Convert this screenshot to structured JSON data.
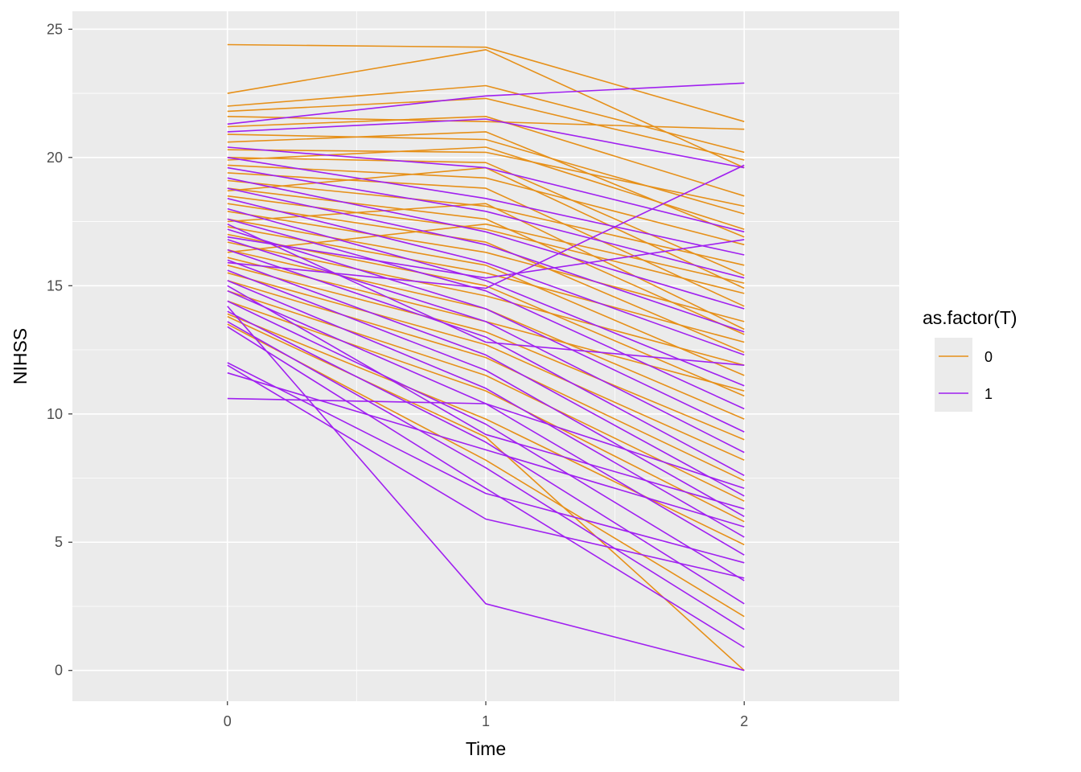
{
  "chart_data": {
    "type": "line",
    "x": [
      0,
      1,
      2
    ],
    "xticks": [
      "0",
      "1",
      "2"
    ],
    "yticks": [
      "0",
      "5",
      "10",
      "15",
      "20",
      "25"
    ],
    "xlim": [
      -0.6,
      2.6
    ],
    "ylim": [
      -1.2,
      25.7
    ],
    "xlabel": "Time",
    "ylabel": "NIHSS",
    "legend": {
      "title": "as.factor(T)",
      "placement": "right",
      "entries": [
        {
          "label": "0",
          "color": "#E69019"
        },
        {
          "label": "1",
          "color": "#A020F0"
        }
      ]
    },
    "series": [
      {
        "group": "0",
        "color": "#E69019",
        "values": [
          24.4,
          24.3,
          21.4
        ]
      },
      {
        "group": "0",
        "color": "#E69019",
        "values": [
          22.5,
          24.2,
          19.6
        ]
      },
      {
        "group": "0",
        "color": "#E69019",
        "values": [
          22.0,
          22.8,
          20.2
        ]
      },
      {
        "group": "0",
        "color": "#E69019",
        "values": [
          21.8,
          22.3,
          19.9
        ]
      },
      {
        "group": "0",
        "color": "#E69019",
        "values": [
          21.6,
          21.4,
          21.1
        ]
      },
      {
        "group": "0",
        "color": "#E69019",
        "values": [
          21.2,
          21.6,
          18.5
        ]
      },
      {
        "group": "0",
        "color": "#E69019",
        "values": [
          20.9,
          20.7,
          17.8
        ]
      },
      {
        "group": "0",
        "color": "#E69019",
        "values": [
          20.6,
          21.0,
          16.9
        ]
      },
      {
        "group": "0",
        "color": "#E69019",
        "values": [
          20.3,
          20.2,
          18.1
        ]
      },
      {
        "group": "0",
        "color": "#E69019",
        "values": [
          20.0,
          19.8,
          15.4
        ]
      },
      {
        "group": "0",
        "color": "#E69019",
        "values": [
          19.7,
          19.2,
          16.6
        ]
      },
      {
        "group": "0",
        "color": "#E69019",
        "values": [
          19.4,
          18.8,
          14.2
        ]
      },
      {
        "group": "0",
        "color": "#E69019",
        "values": [
          19.1,
          18.1,
          15.8
        ]
      },
      {
        "group": "0",
        "color": "#E69019",
        "values": [
          18.8,
          17.6,
          13.1
        ]
      },
      {
        "group": "0",
        "color": "#E69019",
        "values": [
          18.5,
          17.2,
          14.7
        ]
      },
      {
        "group": "0",
        "color": "#E69019",
        "values": [
          18.2,
          16.7,
          12.4
        ]
      },
      {
        "group": "0",
        "color": "#E69019",
        "values": [
          17.9,
          16.3,
          13.6
        ]
      },
      {
        "group": "0",
        "color": "#E69019",
        "values": [
          17.6,
          15.8,
          11.5
        ]
      },
      {
        "group": "0",
        "color": "#E69019",
        "values": [
          17.3,
          15.5,
          12.8
        ]
      },
      {
        "group": "0",
        "color": "#E69019",
        "values": [
          17.0,
          15.0,
          10.7
        ]
      },
      {
        "group": "0",
        "color": "#E69019",
        "values": [
          16.7,
          14.6,
          11.9
        ]
      },
      {
        "group": "0",
        "color": "#E69019",
        "values": [
          16.4,
          14.1,
          9.8
        ]
      },
      {
        "group": "0",
        "color": "#E69019",
        "values": [
          16.1,
          13.6,
          10.9
        ]
      },
      {
        "group": "0",
        "color": "#E69019",
        "values": [
          15.8,
          13.2,
          9.0
        ]
      },
      {
        "group": "0",
        "color": "#E69019",
        "values": [
          15.5,
          12.7,
          8.2
        ]
      },
      {
        "group": "0",
        "color": "#E69019",
        "values": [
          15.2,
          12.2,
          7.4
        ]
      },
      {
        "group": "0",
        "color": "#E69019",
        "values": [
          14.8,
          11.5,
          6.6
        ]
      },
      {
        "group": "0",
        "color": "#E69019",
        "values": [
          14.4,
          10.9,
          5.8
        ]
      },
      {
        "group": "0",
        "color": "#E69019",
        "values": [
          13.9,
          9.8,
          4.9
        ]
      },
      {
        "group": "0",
        "color": "#E69019",
        "values": [
          13.5,
          8.2,
          2.1
        ]
      },
      {
        "group": "0",
        "color": "#E69019",
        "values": [
          13.8,
          9.1,
          0.0
        ]
      },
      {
        "group": "0",
        "color": "#E69019",
        "values": [
          19.9,
          20.4,
          17.2
        ]
      },
      {
        "group": "0",
        "color": "#E69019",
        "values": [
          18.7,
          19.6,
          14.9
        ]
      },
      {
        "group": "0",
        "color": "#E69019",
        "values": [
          17.5,
          18.2,
          13.3
        ]
      },
      {
        "group": "0",
        "color": "#E69019",
        "values": [
          16.3,
          17.4,
          15.1
        ]
      },
      {
        "group": "1",
        "color": "#A020F0",
        "values": [
          21.3,
          22.4,
          22.9
        ]
      },
      {
        "group": "1",
        "color": "#A020F0",
        "values": [
          21.0,
          21.5,
          19.6
        ]
      },
      {
        "group": "1",
        "color": "#A020F0",
        "values": [
          20.4,
          19.6,
          17.1
        ]
      },
      {
        "group": "1",
        "color": "#A020F0",
        "values": [
          20.0,
          18.4,
          16.2
        ]
      },
      {
        "group": "1",
        "color": "#A020F0",
        "values": [
          19.6,
          17.9,
          15.3
        ]
      },
      {
        "group": "1",
        "color": "#A020F0",
        "values": [
          19.2,
          17.1,
          14.1
        ]
      },
      {
        "group": "1",
        "color": "#A020F0",
        "values": [
          18.8,
          16.6,
          13.2
        ]
      },
      {
        "group": "1",
        "color": "#A020F0",
        "values": [
          18.4,
          15.9,
          12.3
        ]
      },
      {
        "group": "1",
        "color": "#A020F0",
        "values": [
          18.0,
          15.2,
          11.1
        ]
      },
      {
        "group": "1",
        "color": "#A020F0",
        "values": [
          17.6,
          14.8,
          10.2
        ]
      },
      {
        "group": "1",
        "color": "#A020F0",
        "values": [
          17.2,
          14.1,
          9.3
        ]
      },
      {
        "group": "1",
        "color": "#A020F0",
        "values": [
          16.8,
          13.6,
          8.5
        ]
      },
      {
        "group": "1",
        "color": "#A020F0",
        "values": [
          16.4,
          13.0,
          7.6
        ]
      },
      {
        "group": "1",
        "color": "#A020F0",
        "values": [
          16.0,
          12.3,
          6.8
        ]
      },
      {
        "group": "1",
        "color": "#A020F0",
        "values": [
          15.6,
          11.7,
          6.0
        ]
      },
      {
        "group": "1",
        "color": "#A020F0",
        "values": [
          15.2,
          11.0,
          5.2
        ]
      },
      {
        "group": "1",
        "color": "#A020F0",
        "values": [
          14.8,
          10.4,
          4.5
        ]
      },
      {
        "group": "1",
        "color": "#A020F0",
        "values": [
          14.4,
          9.6,
          3.5
        ]
      },
      {
        "group": "1",
        "color": "#A020F0",
        "values": [
          14.0,
          8.9,
          2.6
        ]
      },
      {
        "group": "1",
        "color": "#A020F0",
        "values": [
          13.6,
          7.9,
          1.6
        ]
      },
      {
        "group": "1",
        "color": "#A020F0",
        "values": [
          13.4,
          7.1,
          0.9
        ]
      },
      {
        "group": "1",
        "color": "#A020F0",
        "values": [
          12.0,
          6.9,
          4.2
        ]
      },
      {
        "group": "1",
        "color": "#A020F0",
        "values": [
          11.9,
          5.9,
          3.6
        ]
      },
      {
        "group": "1",
        "color": "#A020F0",
        "values": [
          11.6,
          8.6,
          5.6
        ]
      },
      {
        "group": "1",
        "color": "#A020F0",
        "values": [
          10.6,
          10.4,
          7.1
        ]
      },
      {
        "group": "1",
        "color": "#A020F0",
        "values": [
          14.2,
          2.6,
          0.0
        ]
      },
      {
        "group": "1",
        "color": "#A020F0",
        "values": [
          16.9,
          15.3,
          16.8
        ]
      },
      {
        "group": "1",
        "color": "#A020F0",
        "values": [
          15.9,
          14.9,
          19.7
        ]
      },
      {
        "group": "1",
        "color": "#A020F0",
        "values": [
          17.4,
          12.8,
          11.9
        ]
      },
      {
        "group": "1",
        "color": "#A020F0",
        "values": [
          15.0,
          9.2,
          6.3
        ]
      }
    ]
  }
}
